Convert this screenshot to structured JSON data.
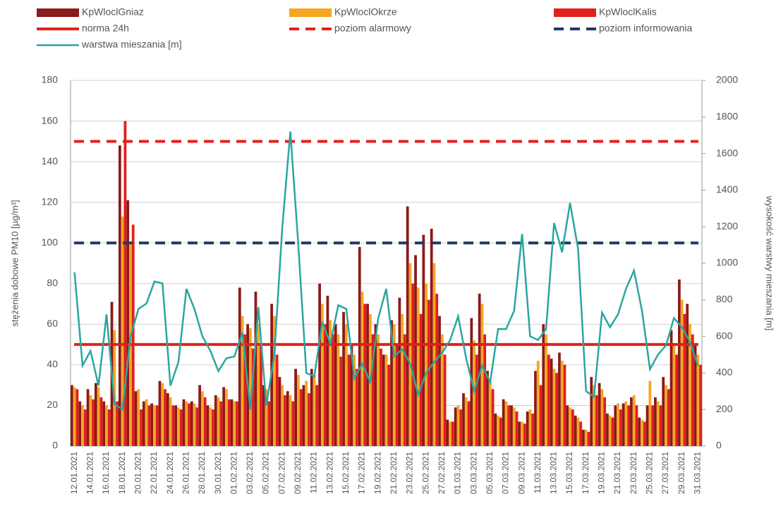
{
  "chart_data": {
    "type": "bar",
    "ylabel": "stężenia dobowe PM10 [µg/m³]",
    "y2label": "wysokość warstwy mieszania [m]",
    "categories": [
      "12.01.2021",
      null,
      "14.01.2021",
      null,
      "16.01.2021",
      null,
      "18.01.2021",
      null,
      "20.01.2021",
      null,
      "22.01.2021",
      null,
      "24.01.2021",
      null,
      "26.01.2021",
      null,
      "28.01.2021",
      null,
      "30.01.2021",
      null,
      "01.02.2021",
      null,
      "03.02.2021",
      null,
      "05.02.2021",
      null,
      "07.02.2021",
      null,
      "09.02.2021",
      null,
      "11.02.2021",
      null,
      "13.02.2021",
      null,
      "15.02.2021",
      null,
      "17.02.2021",
      null,
      "19.02.2021",
      null,
      "21.02.2021",
      null,
      "23.02.2021",
      null,
      "25.02.2021",
      null,
      "27.02.2021",
      null,
      "01.03.2021",
      null,
      "03.03.2021",
      null,
      "05.03.2021",
      null,
      "07.03.2021",
      null,
      "09.03.2021",
      null,
      "11.03.2021",
      null,
      "13.03.2021",
      null,
      "15.03.2021",
      null,
      "17.03.2021",
      null,
      "19.03.2021",
      null,
      "21.03.2021",
      null,
      "23.03.2021",
      null,
      "25.03.2021",
      null,
      "27.03.2021",
      null,
      "29.03.2021",
      null,
      "31.03.2021"
    ],
    "series": [
      {
        "name": "KpWloclGniaz",
        "color": "#8b1a1a",
        "values": [
          30,
          22,
          28,
          31,
          22,
          71,
          148,
          121,
          27,
          22,
          21,
          32,
          26,
          20,
          23,
          22,
          30,
          20,
          25,
          29,
          23,
          78,
          60,
          76,
          30,
          70,
          34,
          27,
          38,
          30,
          38,
          80,
          74,
          60,
          66,
          50,
          98,
          70,
          60,
          45,
          62,
          73,
          118,
          94,
          104,
          107,
          64,
          13,
          19,
          26,
          63,
          75,
          37,
          16,
          23,
          20,
          12,
          17,
          37,
          60,
          43,
          46,
          20,
          15,
          8,
          34,
          31,
          16,
          20,
          21,
          24,
          14,
          20,
          24,
          34,
          57,
          82,
          70,
          50
        ]
      },
      {
        "name": "KpWloclOkrze",
        "color": "#f5a623",
        "values": [
          29,
          20,
          25,
          29,
          20,
          57,
          113,
          100,
          28,
          23,
          20,
          31,
          24,
          19,
          22,
          21,
          27,
          19,
          24,
          28,
          22,
          64,
          58,
          60,
          28,
          64,
          30,
          25,
          35,
          32,
          35,
          70,
          62,
          55,
          60,
          45,
          76,
          65,
          55,
          45,
          60,
          65,
          90,
          78,
          80,
          90,
          55,
          12,
          20,
          24,
          52,
          70,
          33,
          15,
          22,
          19,
          12,
          18,
          42,
          55,
          38,
          42,
          19,
          14,
          8,
          30,
          28,
          15,
          21,
          22,
          25,
          13,
          32,
          22,
          30,
          50,
          72,
          60,
          45
        ]
      },
      {
        "name": "KpWloclKalis",
        "color": "#e0201a",
        "values": [
          28,
          18,
          23,
          24,
          18,
          22,
          160,
          109,
          18,
          20,
          20,
          28,
          20,
          18,
          21,
          19,
          24,
          18,
          22,
          23,
          22,
          55,
          48,
          50,
          22,
          45,
          25,
          22,
          28,
          26,
          30,
          60,
          55,
          44,
          45,
          38,
          70,
          55,
          48,
          40,
          50,
          55,
          80,
          65,
          72,
          75,
          45,
          12,
          18,
          22,
          45,
          55,
          28,
          14,
          20,
          17,
          11,
          16,
          30,
          45,
          36,
          40,
          18,
          12,
          7,
          25,
          24,
          14,
          18,
          20,
          20,
          12,
          20,
          20,
          28,
          45,
          65,
          55,
          40
        ]
      },
      {
        "name": "warstwa mieszania [m]",
        "color": "#2aa6a0",
        "axis": "y2",
        "type": "line",
        "values": [
          950,
          440,
          520,
          330,
          720,
          230,
          200,
          600,
          750,
          780,
          900,
          890,
          330,
          460,
          860,
          750,
          600,
          520,
          410,
          480,
          490,
          620,
          200,
          760,
          220,
          500,
          1200,
          1720,
          1100,
          400,
          380,
          680,
          560,
          770,
          750,
          370,
          450,
          350,
          700,
          860,
          490,
          530,
          450,
          280,
          400,
          460,
          510,
          580,
          710,
          480,
          300,
          440,
          350,
          640,
          640,
          740,
          1160,
          600,
          580,
          640,
          1220,
          1060,
          1330,
          1080,
          300,
          270,
          730,
          650,
          720,
          860,
          960,
          740,
          420,
          500,
          550,
          700,
          650,
          570,
          440
        ]
      }
    ],
    "reference_lines": [
      {
        "name": "norma 24h",
        "value": 50,
        "color": "#e0201a",
        "style": "solid"
      },
      {
        "name": "poziom alarmowy",
        "value": 150,
        "color": "#e8201a",
        "style": "dashed"
      },
      {
        "name": "poziom informowania",
        "value": 100,
        "color": "#1f3a68",
        "style": "dashed"
      }
    ],
    "ylim": [
      0,
      180
    ],
    "yticks": [
      0,
      20,
      40,
      60,
      80,
      100,
      120,
      140,
      160,
      180
    ],
    "y2lim": [
      0,
      2000
    ],
    "y2ticks": [
      0,
      200,
      400,
      600,
      800,
      1000,
      1200,
      1400,
      1600,
      1800,
      2000
    ],
    "grid": true
  }
}
